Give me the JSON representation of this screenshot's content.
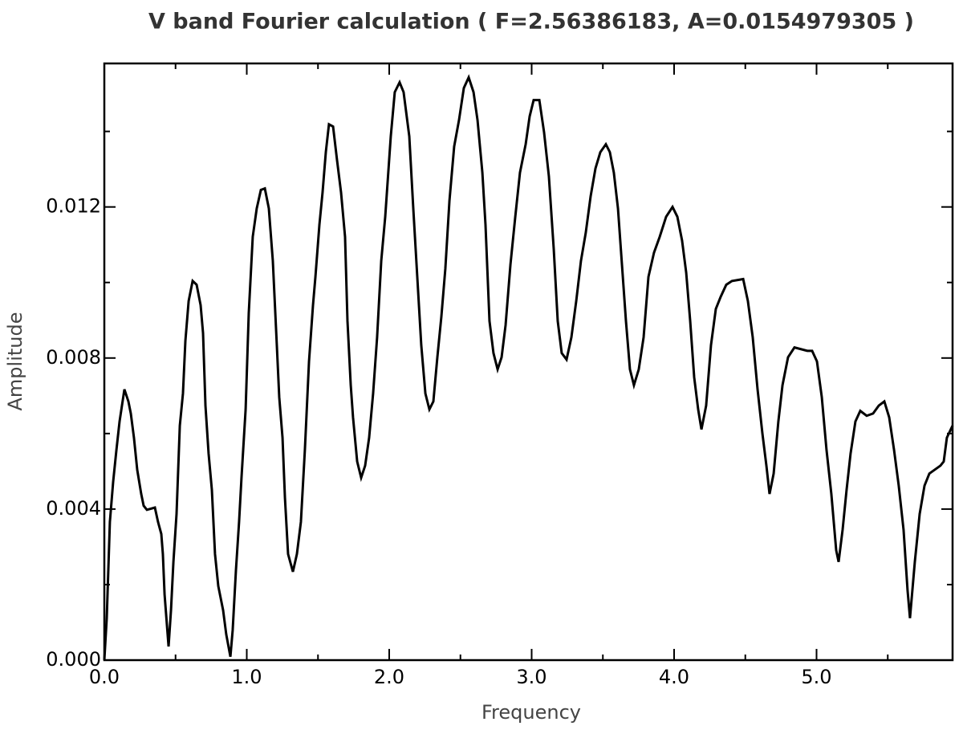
{
  "chart_data": {
    "type": "line",
    "title": "V band Fourier calculation ( F=2.56386183, A=0.0154979305 )",
    "xlabel": "Frequency",
    "ylabel": "Amplitude",
    "xlim": [
      0,
      5.955
    ],
    "ylim": [
      0,
      0.0158
    ],
    "xticks": [
      {
        "value": 0,
        "label": "0.0"
      },
      {
        "value": 1,
        "label": "1.0"
      },
      {
        "value": 2,
        "label": "2.0"
      },
      {
        "value": 3,
        "label": "3.0"
      },
      {
        "value": 4,
        "label": "4.0"
      },
      {
        "value": 5,
        "label": "5.0"
      }
    ],
    "xminorticks": [
      0.5,
      1.5,
      2.5,
      3.5,
      4.5,
      5.5
    ],
    "yticks": [
      {
        "value": 0,
        "label": "0.000"
      },
      {
        "value": 0.004,
        "label": "0.004"
      },
      {
        "value": 0.008,
        "label": "0.008"
      },
      {
        "value": 0.012,
        "label": "0.012"
      }
    ],
    "yminorticks": [
      0.002,
      0.006,
      0.01,
      0.014
    ],
    "grid": false,
    "x": [
      0,
      0.017,
      0.039,
      0.062,
      0.085,
      0.107,
      0.141,
      0.169,
      0.186,
      0.208,
      0.231,
      0.259,
      0.276,
      0.299,
      0.355,
      0.377,
      0.4,
      0.411,
      0.423,
      0.451,
      0.468,
      0.485,
      0.507,
      0.53,
      0.552,
      0.569,
      0.592,
      0.62,
      0.648,
      0.676,
      0.693,
      0.71,
      0.732,
      0.755,
      0.777,
      0.8,
      0.834,
      0.856,
      0.885,
      0.901,
      0.924,
      0.946,
      0.963,
      0.992,
      1.014,
      1.042,
      1.07,
      1.099,
      1.127,
      1.155,
      1.183,
      1.211,
      1.228,
      1.251,
      1.268,
      1.29,
      1.324,
      1.352,
      1.38,
      1.408,
      1.437,
      1.465,
      1.482,
      1.51,
      1.532,
      1.555,
      1.577,
      1.606,
      1.634,
      1.662,
      1.69,
      1.707,
      1.73,
      1.746,
      1.775,
      1.803,
      1.831,
      1.859,
      1.887,
      1.915,
      1.944,
      1.972,
      2.011,
      2.039,
      2.073,
      2.101,
      2.141,
      2.169,
      2.197,
      2.225,
      2.254,
      2.282,
      2.31,
      2.338,
      2.366,
      2.394,
      2.423,
      2.456,
      2.49,
      2.524,
      2.558,
      2.592,
      2.62,
      2.654,
      2.676,
      2.704,
      2.732,
      2.761,
      2.789,
      2.817,
      2.851,
      2.885,
      2.918,
      2.958,
      2.986,
      3.014,
      3.054,
      3.087,
      3.121,
      3.155,
      3.183,
      3.211,
      3.245,
      3.279,
      3.313,
      3.346,
      3.38,
      3.414,
      3.448,
      3.482,
      3.521,
      3.549,
      3.577,
      3.606,
      3.634,
      3.662,
      3.69,
      3.718,
      3.752,
      3.786,
      3.82,
      3.859,
      3.899,
      3.944,
      3.989,
      4.023,
      4.056,
      4.085,
      4.113,
      4.141,
      4.169,
      4.192,
      4.225,
      4.259,
      4.293,
      4.327,
      4.366,
      4.406,
      4.485,
      4.518,
      4.552,
      4.586,
      4.62,
      4.648,
      4.67,
      4.699,
      4.732,
      4.761,
      4.8,
      4.845,
      4.935,
      4.969,
      5.003,
      5.037,
      5.07,
      5.104,
      5.138,
      5.155,
      5.183,
      5.211,
      5.239,
      5.273,
      5.307,
      5.352,
      5.397,
      5.437,
      5.476,
      5.51,
      5.544,
      5.577,
      5.611,
      5.639,
      5.656,
      5.69,
      5.724,
      5.758,
      5.792,
      5.87,
      5.893,
      5.915,
      5.955
    ],
    "series": [
      {
        "color": "#000000",
        "values": [
          0,
          0.00111,
          0.00366,
          0.00472,
          0.00557,
          0.00632,
          0.00717,
          0.00685,
          0.00653,
          0.00589,
          0.00504,
          0.0044,
          0.00409,
          0.00398,
          0.00404,
          0.00366,
          0.00334,
          0.00281,
          0.00174,
          0.00036,
          0.00132,
          0.0026,
          0.00387,
          0.00621,
          0.00706,
          0.00845,
          0.00951,
          0.01004,
          0.00994,
          0.0094,
          0.00866,
          0.00674,
          0.00547,
          0.00451,
          0.00281,
          0.00196,
          0.00132,
          0.00068,
          9e-05,
          0.00079,
          0.00238,
          0.00366,
          0.00483,
          0.00664,
          0.00919,
          0.01121,
          0.01196,
          0.01245,
          0.01249,
          0.01196,
          0.01057,
          0.00834,
          0.00696,
          0.00589,
          0.0043,
          0.00281,
          0.00234,
          0.00281,
          0.00366,
          0.00557,
          0.00791,
          0.0094,
          0.01015,
          0.01153,
          0.01238,
          0.01345,
          0.01419,
          0.01413,
          0.01323,
          0.01238,
          0.01121,
          0.00898,
          0.00728,
          0.00643,
          0.00526,
          0.00483,
          0.00515,
          0.00589,
          0.00706,
          0.00855,
          0.01057,
          0.01174,
          0.01387,
          0.01504,
          0.0153,
          0.01504,
          0.01387,
          0.01196,
          0.01015,
          0.00834,
          0.00706,
          0.00664,
          0.00685,
          0.00802,
          0.00909,
          0.01036,
          0.01217,
          0.0136,
          0.0143,
          0.01515,
          0.01543,
          0.01504,
          0.0143,
          0.01291,
          0.01153,
          0.00898,
          0.00813,
          0.0077,
          0.00802,
          0.00887,
          0.01047,
          0.01174,
          0.01291,
          0.01366,
          0.0144,
          0.01483,
          0.01483,
          0.01398,
          0.01281,
          0.01089,
          0.00898,
          0.00813,
          0.00796,
          0.00855,
          0.00951,
          0.01057,
          0.01132,
          0.01228,
          0.01302,
          0.01345,
          0.01366,
          0.01345,
          0.01291,
          0.01196,
          0.01047,
          0.00898,
          0.0077,
          0.00728,
          0.0077,
          0.00855,
          0.01015,
          0.01079,
          0.01121,
          0.01174,
          0.012,
          0.01174,
          0.01111,
          0.01026,
          0.00898,
          0.00749,
          0.00664,
          0.00611,
          0.00674,
          0.00834,
          0.0093,
          0.00962,
          0.00994,
          0.01004,
          0.01009,
          0.00951,
          0.00855,
          0.00717,
          0.006,
          0.00515,
          0.0044,
          0.00494,
          0.00632,
          0.00728,
          0.00802,
          0.00828,
          0.00819,
          0.00819,
          0.00791,
          0.00696,
          0.00557,
          0.0044,
          0.00291,
          0.0026,
          0.00345,
          0.00451,
          0.00547,
          0.00632,
          0.0066,
          0.00647,
          0.00653,
          0.00674,
          0.00685,
          0.00643,
          0.00557,
          0.00462,
          0.00345,
          0.00185,
          0.00111,
          0.0026,
          0.00387,
          0.00462,
          0.00494,
          0.00515,
          0.00526,
          0.00589,
          0.00621
        ]
      }
    ]
  }
}
